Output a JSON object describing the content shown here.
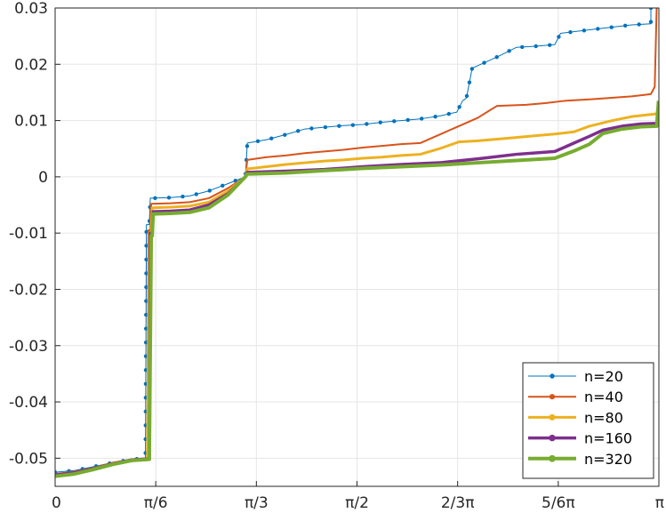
{
  "chart_data": {
    "type": "line",
    "title": "",
    "xlabel": "",
    "ylabel": "",
    "xlim": [
      0,
      3.14159
    ],
    "ylim": [
      -0.055,
      0.03
    ],
    "grid": true,
    "legend_position": "bottom-right",
    "x_ticks": [
      {
        "value": 0,
        "label": "0"
      },
      {
        "value": 0.5236,
        "label": "π/6"
      },
      {
        "value": 1.0472,
        "label": "π/3"
      },
      {
        "value": 1.5708,
        "label": "π/2"
      },
      {
        "value": 2.0944,
        "label": "2/3π"
      },
      {
        "value": 2.618,
        "label": "5/6π"
      },
      {
        "value": 3.14159,
        "label": "π"
      }
    ],
    "y_ticks": [
      {
        "value": 0.03,
        "label": "0.03"
      },
      {
        "value": 0.02,
        "label": "0.02"
      },
      {
        "value": 0.01,
        "label": "0.01"
      },
      {
        "value": 0,
        "label": "0"
      },
      {
        "value": -0.01,
        "label": "-0.01"
      },
      {
        "value": -0.02,
        "label": "-0.02"
      },
      {
        "value": -0.03,
        "label": "-0.03"
      },
      {
        "value": -0.04,
        "label": "-0.04"
      },
      {
        "value": -0.05,
        "label": "-0.05"
      }
    ],
    "series": [
      {
        "name": "n=20",
        "color": "#0072BD",
        "line_width": 1,
        "marker_size": 2.2,
        "marker_count": 70,
        "points": [
          [
            0,
            -0.0525
          ],
          [
            0.1,
            -0.0522
          ],
          [
            0.2,
            -0.0515
          ],
          [
            0.3,
            -0.0508
          ],
          [
            0.4,
            -0.0502
          ],
          [
            0.47,
            -0.05
          ],
          [
            0.475,
            -0.0085
          ],
          [
            0.49,
            -0.0085
          ],
          [
            0.495,
            -0.0038
          ],
          [
            0.6,
            -0.0037
          ],
          [
            0.7,
            -0.0034
          ],
          [
            0.8,
            -0.0025
          ],
          [
            0.9,
            -0.0012
          ],
          [
            0.99,
            0.0
          ],
          [
            1.0,
            0.006
          ],
          [
            1.1,
            0.0066
          ],
          [
            1.2,
            0.0075
          ],
          [
            1.3,
            0.0085
          ],
          [
            1.4,
            0.0088
          ],
          [
            1.5,
            0.0091
          ],
          [
            1.6,
            0.0093
          ],
          [
            1.7,
            0.0097
          ],
          [
            1.8,
            0.01
          ],
          [
            1.9,
            0.0103
          ],
          [
            2.0,
            0.0108
          ],
          [
            2.09,
            0.0115
          ],
          [
            2.12,
            0.0135
          ],
          [
            2.14,
            0.014
          ],
          [
            2.17,
            0.0193
          ],
          [
            2.3,
            0.0213
          ],
          [
            2.4,
            0.023
          ],
          [
            2.5,
            0.0232
          ],
          [
            2.6,
            0.0235
          ],
          [
            2.63,
            0.0255
          ],
          [
            2.8,
            0.0262
          ],
          [
            3.0,
            0.027
          ],
          [
            3.1,
            0.0272
          ],
          [
            3.1,
            0.03
          ]
        ]
      },
      {
        "name": "n=40",
        "color": "#D95319",
        "line_width": 2,
        "marker_size": 2.6,
        "marker_count": 0,
        "points": [
          [
            0,
            -0.0528
          ],
          [
            0.1,
            -0.0524
          ],
          [
            0.2,
            -0.0517
          ],
          [
            0.3,
            -0.0508
          ],
          [
            0.4,
            -0.0502
          ],
          [
            0.48,
            -0.05
          ],
          [
            0.485,
            -0.0095
          ],
          [
            0.495,
            -0.0095
          ],
          [
            0.5,
            -0.0048
          ],
          [
            0.6,
            -0.0047
          ],
          [
            0.7,
            -0.0045
          ],
          [
            0.8,
            -0.0038
          ],
          [
            0.9,
            -0.002
          ],
          [
            0.99,
            0.0
          ],
          [
            1.0,
            0.003
          ],
          [
            1.1,
            0.0035
          ],
          [
            1.2,
            0.0038
          ],
          [
            1.3,
            0.0042
          ],
          [
            1.4,
            0.0045
          ],
          [
            1.5,
            0.0048
          ],
          [
            1.6,
            0.0052
          ],
          [
            1.7,
            0.0055
          ],
          [
            1.8,
            0.0058
          ],
          [
            1.9,
            0.006
          ],
          [
            2.0,
            0.0075
          ],
          [
            2.1,
            0.009
          ],
          [
            2.2,
            0.0105
          ],
          [
            2.27,
            0.012
          ],
          [
            2.3,
            0.0126
          ],
          [
            2.45,
            0.0128
          ],
          [
            2.55,
            0.0131
          ],
          [
            2.65,
            0.0135
          ],
          [
            2.8,
            0.0138
          ],
          [
            3.0,
            0.0143
          ],
          [
            3.1,
            0.0147
          ],
          [
            3.12,
            0.016
          ],
          [
            3.13,
            0.03
          ]
        ]
      },
      {
        "name": "n=80",
        "color": "#EDB120",
        "line_width": 3,
        "marker_size": 3,
        "marker_count": 0,
        "points": [
          [
            0,
            -0.053
          ],
          [
            0.1,
            -0.0526
          ],
          [
            0.2,
            -0.0519
          ],
          [
            0.3,
            -0.051
          ],
          [
            0.4,
            -0.0503
          ],
          [
            0.48,
            -0.0501
          ],
          [
            0.49,
            -0.01
          ],
          [
            0.5,
            -0.01
          ],
          [
            0.505,
            -0.0055
          ],
          [
            0.6,
            -0.0054
          ],
          [
            0.7,
            -0.0052
          ],
          [
            0.8,
            -0.0045
          ],
          [
            0.9,
            -0.0025
          ],
          [
            0.99,
            0.0
          ],
          [
            1.0,
            0.0014
          ],
          [
            1.1,
            0.0018
          ],
          [
            1.2,
            0.0022
          ],
          [
            1.3,
            0.0025
          ],
          [
            1.4,
            0.0028
          ],
          [
            1.5,
            0.003
          ],
          [
            1.6,
            0.0033
          ],
          [
            1.7,
            0.0035
          ],
          [
            1.8,
            0.0038
          ],
          [
            1.9,
            0.004
          ],
          [
            2.0,
            0.005
          ],
          [
            2.1,
            0.0062
          ],
          [
            2.2,
            0.0064
          ],
          [
            2.3,
            0.0067
          ],
          [
            2.4,
            0.007
          ],
          [
            2.5,
            0.0073
          ],
          [
            2.6,
            0.0076
          ],
          [
            2.7,
            0.008
          ],
          [
            2.78,
            0.009
          ],
          [
            2.9,
            0.01
          ],
          [
            3.0,
            0.0107
          ],
          [
            3.13,
            0.0112
          ],
          [
            3.14,
            0.0125
          ]
        ]
      },
      {
        "name": "n=160",
        "color": "#7E2F8E",
        "line_width": 3.5,
        "marker_size": 3.2,
        "marker_count": 0,
        "points": [
          [
            0,
            -0.053
          ],
          [
            0.1,
            -0.0526
          ],
          [
            0.2,
            -0.0519
          ],
          [
            0.3,
            -0.051
          ],
          [
            0.4,
            -0.0503
          ],
          [
            0.49,
            -0.0501
          ],
          [
            0.495,
            -0.01
          ],
          [
            0.505,
            -0.01
          ],
          [
            0.51,
            -0.0062
          ],
          [
            0.6,
            -0.0061
          ],
          [
            0.7,
            -0.0059
          ],
          [
            0.8,
            -0.005
          ],
          [
            0.9,
            -0.003
          ],
          [
            0.99,
            0.0
          ],
          [
            1.0,
            0.0008
          ],
          [
            1.2,
            0.001
          ],
          [
            1.4,
            0.0013
          ],
          [
            1.6,
            0.0018
          ],
          [
            1.8,
            0.0022
          ],
          [
            2.0,
            0.0025
          ],
          [
            2.2,
            0.0032
          ],
          [
            2.4,
            0.004
          ],
          [
            2.6,
            0.0045
          ],
          [
            2.7,
            0.006
          ],
          [
            2.78,
            0.0072
          ],
          [
            2.85,
            0.0083
          ],
          [
            2.95,
            0.009
          ],
          [
            3.05,
            0.0094
          ],
          [
            3.13,
            0.0095
          ],
          [
            3.14,
            0.011
          ]
        ]
      },
      {
        "name": "n=320",
        "color": "#77AC30",
        "line_width": 4,
        "marker_size": 3.4,
        "marker_count": 0,
        "points": [
          [
            0,
            -0.0532
          ],
          [
            0.1,
            -0.0528
          ],
          [
            0.2,
            -0.052
          ],
          [
            0.3,
            -0.0511
          ],
          [
            0.4,
            -0.0504
          ],
          [
            0.49,
            -0.0502
          ],
          [
            0.5,
            -0.0105
          ],
          [
            0.505,
            -0.0105
          ],
          [
            0.51,
            -0.0066
          ],
          [
            0.6,
            -0.0065
          ],
          [
            0.7,
            -0.0063
          ],
          [
            0.8,
            -0.0055
          ],
          [
            0.9,
            -0.0032
          ],
          [
            0.99,
            0.0
          ],
          [
            1.0,
            0.0005
          ],
          [
            1.2,
            0.0007
          ],
          [
            1.4,
            0.0011
          ],
          [
            1.6,
            0.0015
          ],
          [
            1.8,
            0.0018
          ],
          [
            2.0,
            0.0021
          ],
          [
            2.2,
            0.0025
          ],
          [
            2.4,
            0.0029
          ],
          [
            2.6,
            0.0033
          ],
          [
            2.7,
            0.0046
          ],
          [
            2.78,
            0.0058
          ],
          [
            2.85,
            0.0077
          ],
          [
            2.95,
            0.0085
          ],
          [
            3.05,
            0.0089
          ],
          [
            3.13,
            0.009
          ],
          [
            3.14,
            0.0135
          ]
        ]
      }
    ]
  }
}
